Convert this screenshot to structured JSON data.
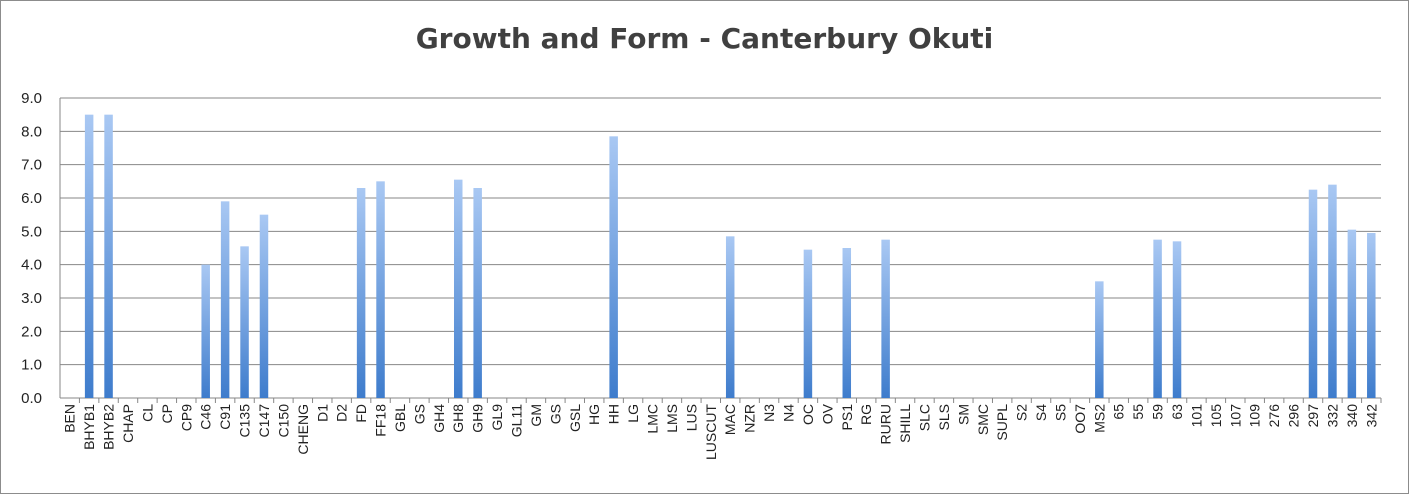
{
  "chart_data": {
    "type": "bar",
    "title": "Growth and Form - Canterbury Okuti",
    "xlabel": "",
    "ylabel": "",
    "ylim": [
      0,
      9
    ],
    "ytick_step": 1,
    "ytick_labels": [
      "0.0",
      "1.0",
      "2.0",
      "3.0",
      "4.0",
      "5.0",
      "6.0",
      "7.0",
      "8.0",
      "9.0"
    ],
    "grid": true,
    "legend": "none",
    "colors": {
      "bar_top": "#a9c8f3",
      "bar_bottom": "#3e7ccc",
      "grid": "#878787",
      "axis": "#878787"
    },
    "categories": [
      "BEN",
      "BHYB1",
      "BHYB2",
      "CHAP",
      "CL",
      "CP",
      "CP9",
      "C46",
      "C91",
      "C135",
      "C147",
      "C150",
      "CHENG",
      "D1",
      "D2",
      "FD",
      "FF18",
      "GBL",
      "GS",
      "GH4",
      "GH8",
      "GH9",
      "GL9",
      "GL11",
      "GM",
      "GS",
      "GSL",
      "HG",
      "HH",
      "LG",
      "LMC",
      "LMS",
      "LUS",
      "LUSCUT",
      "MAC",
      "NZR",
      "N3",
      "N4",
      "OC",
      "OV",
      "PS1",
      "RG",
      "RURU",
      "SHILL",
      "SLC",
      "SLS",
      "SM",
      "SMC",
      "SUPL",
      "S2",
      "S4",
      "S5",
      "OO7",
      "MS2",
      "65",
      "55",
      "59",
      "63",
      "101",
      "105",
      "107",
      "109",
      "276",
      "296",
      "297",
      "332",
      "340",
      "342"
    ],
    "values": [
      0,
      8.5,
      8.5,
      0,
      0,
      0,
      0,
      4.0,
      5.9,
      4.55,
      5.5,
      0,
      0,
      0,
      0,
      6.3,
      6.5,
      0,
      0,
      0,
      6.55,
      6.3,
      0,
      0,
      0,
      0,
      0,
      0,
      7.85,
      0,
      0,
      0,
      0,
      0,
      4.85,
      0,
      0,
      0,
      4.45,
      0,
      4.5,
      0,
      4.75,
      0,
      0,
      0,
      0,
      0,
      0,
      0,
      0,
      0,
      0,
      3.5,
      0,
      0,
      4.75,
      4.7,
      0,
      0,
      0,
      0,
      0,
      0,
      6.25,
      6.4,
      5.05,
      4.95
    ]
  }
}
